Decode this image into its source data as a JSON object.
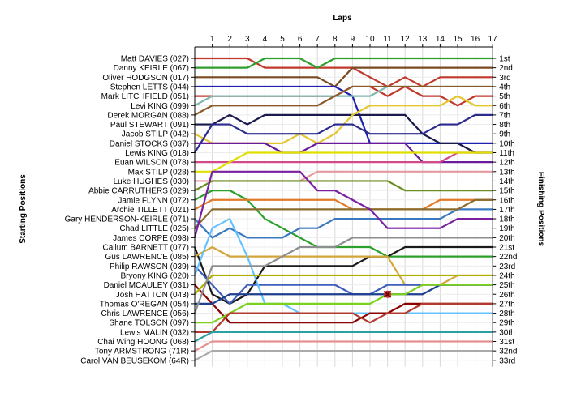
{
  "chart_data": {
    "type": "line",
    "title": "Laps",
    "ylabel_left": "Starting Positions",
    "ylabel_right": "Finishing Positions",
    "x": [
      1,
      2,
      3,
      4,
      5,
      6,
      7,
      8,
      9,
      10,
      11,
      12,
      13,
      14,
      15,
      16,
      17
    ],
    "finishing_labels": [
      "1st",
      "2nd",
      "3rd",
      "4th",
      "5th",
      "6th",
      "7th",
      "8th",
      "9th",
      "10th",
      "11th",
      "12th",
      "13th",
      "14th",
      "15th",
      "16th",
      "17th",
      "18th",
      "19th",
      "20th",
      "21st",
      "22nd",
      "23rd",
      "24th",
      "25th",
      "26th",
      "27th",
      "28th",
      "29th",
      "30th",
      "31st",
      "32nd",
      "33rd"
    ],
    "grid": true,
    "incident_marker": {
      "lap": 11,
      "position": 26
    },
    "series": [
      {
        "name": "Matt DAVIES (027)",
        "color": "#c0392b",
        "positions": [
          1,
          1,
          1,
          1,
          2,
          2,
          2,
          2,
          2,
          2,
          3,
          4,
          3,
          4,
          3,
          3,
          3,
          3
        ]
      },
      {
        "name": "Danny KEIRLE (067)",
        "color": "#2e9e2e",
        "positions": [
          2,
          2,
          2,
          2,
          1,
          1,
          1,
          2,
          1,
          1,
          1,
          1,
          1,
          1,
          1,
          1,
          1,
          1
        ]
      },
      {
        "name": "Oliver HODGSON (017)",
        "color": "#7a4a22",
        "positions": [
          3,
          3,
          3,
          3,
          3,
          3,
          3,
          3,
          4,
          2,
          2,
          2,
          2,
          2,
          2,
          2,
          2,
          2
        ]
      },
      {
        "name": "Stephen LETTS (044)",
        "color": "#1f1fb0",
        "positions": [
          4,
          4,
          4,
          4,
          4,
          4,
          4,
          4,
          4,
          5,
          10,
          10,
          10,
          10,
          10,
          10,
          10,
          10
        ]
      },
      {
        "name": "Mark LITCHFIELD (051)",
        "color": "#c0392b",
        "positions": [
          5,
          5,
          5,
          5,
          5,
          5,
          5,
          5,
          5,
          4,
          4,
          5,
          4,
          5,
          5,
          6,
          5,
          5
        ]
      },
      {
        "name": "Levi KING (099)",
        "color": "#7fb8b0",
        "positions": [
          6,
          5,
          5,
          5,
          5,
          5,
          5,
          5,
          5,
          5,
          5,
          4,
          4,
          4,
          4,
          4,
          4,
          4
        ]
      },
      {
        "name": "Derek MORGAN (088)",
        "color": "#8b5a2b",
        "positions": [
          7,
          6,
          6,
          6,
          6,
          6,
          6,
          6,
          5,
          4,
          4,
          4,
          4,
          4,
          4,
          4,
          4,
          4
        ]
      },
      {
        "name": "Paul STEWART (091)",
        "color": "#1a1a4d",
        "positions": [
          8,
          8,
          7,
          8,
          7,
          7,
          7,
          7,
          7,
          7,
          7,
          7,
          7,
          9,
          10,
          10,
          11,
          11
        ]
      },
      {
        "name": "Jacob STILP (042)",
        "color": "#e6c62e",
        "positions": [
          9,
          10,
          10,
          10,
          10,
          10,
          9,
          10,
          9,
          7,
          6,
          6,
          6,
          6,
          6,
          5,
          6,
          6
        ]
      },
      {
        "name": "Daniel STOCKS (037)",
        "color": "#6a1b9a",
        "positions": [
          10,
          10,
          10,
          10,
          10,
          11,
          11,
          10,
          10,
          10,
          10,
          10,
          10,
          12,
          12,
          12,
          12,
          12
        ]
      },
      {
        "name": "Lewis KING (018)",
        "color": "#2b2b8f",
        "positions": [
          11,
          8,
          8,
          9,
          9,
          9,
          9,
          9,
          8,
          8,
          9,
          9,
          9,
          9,
          8,
          8,
          7,
          7
        ]
      },
      {
        "name": "Euan WILSON (078)",
        "color": "#d34a8a",
        "positions": [
          12,
          12,
          12,
          12,
          12,
          12,
          12,
          12,
          12,
          12,
          12,
          12,
          12,
          12,
          12,
          11,
          11,
          11
        ]
      },
      {
        "name": "Max STILP (028)",
        "color": "#e0e000",
        "positions": [
          13,
          13,
          12,
          11,
          11,
          11,
          11,
          11,
          11,
          11,
          11,
          11,
          11,
          11,
          11,
          11,
          11,
          11
        ]
      },
      {
        "name": "Luke HUGHES (030)",
        "color": "#e69aa0",
        "positions": [
          14,
          14,
          14,
          14,
          14,
          14,
          14,
          13,
          13,
          13,
          13,
          13,
          13,
          13,
          13,
          13,
          13,
          13
        ]
      },
      {
        "name": "Abbie CARRUTHERS (029)",
        "color": "#6b8e23",
        "positions": [
          15,
          14,
          14,
          14,
          14,
          14,
          14,
          14,
          14,
          14,
          14,
          14,
          15,
          15,
          15,
          15,
          15,
          15
        ]
      },
      {
        "name": "Jamie FLYNN (072)",
        "color": "#2ca02c",
        "positions": [
          16,
          15,
          15,
          16,
          18,
          19,
          20,
          21,
          21,
          21,
          21,
          22,
          22,
          22,
          22,
          22,
          22,
          22
        ]
      },
      {
        "name": "Archie TILLETT (021)",
        "color": "#e07b29",
        "positions": [
          17,
          16,
          16,
          16,
          16,
          16,
          16,
          16,
          16,
          17,
          17,
          17,
          17,
          17,
          16,
          16,
          16,
          16
        ]
      },
      {
        "name": "Gary HENDERSON-KEIRLE (071)",
        "color": "#3a78c0",
        "positions": [
          18,
          20,
          19,
          20,
          20,
          20,
          19,
          19,
          18,
          18,
          18,
          18,
          18,
          18,
          18,
          17,
          17,
          17
        ]
      },
      {
        "name": "Chad LITTLE (025)",
        "color": "#8b6b2b",
        "positions": [
          19,
          17,
          17,
          17,
          17,
          17,
          17,
          17,
          17,
          17,
          17,
          17,
          17,
          17,
          17,
          17,
          16,
          16
        ]
      },
      {
        "name": "James CORPE (098)",
        "color": "#7b1fa2",
        "positions": [
          20,
          13,
          13,
          13,
          13,
          13,
          13,
          15,
          15,
          16,
          17,
          19,
          19,
          19,
          19,
          18,
          18,
          18
        ]
      },
      {
        "name": "Callum BARNETT (077)",
        "color": "#1a1a1a",
        "positions": [
          21,
          26,
          27,
          26,
          23,
          23,
          23,
          23,
          23,
          23,
          22,
          22,
          21,
          21,
          21,
          21,
          21,
          21
        ]
      },
      {
        "name": "Gus LAWRENCE (085)",
        "color": "#d4a63a",
        "positions": [
          22,
          21,
          22,
          22,
          22,
          22,
          22,
          22,
          22,
          22,
          22,
          22,
          25,
          25,
          25,
          24,
          24,
          24
        ]
      },
      {
        "name": "Philip RAWSON (039)",
        "color": "#3f5fbf",
        "positions": [
          23,
          25,
          27,
          25,
          25,
          25,
          25,
          25,
          25,
          26,
          26,
          25,
          25,
          25,
          25,
          25,
          25,
          25
        ]
      },
      {
        "name": "Bryony KING (020)",
        "color": "#66c2ff",
        "positions": [
          24,
          19,
          18,
          22,
          27,
          27,
          28,
          28,
          28,
          28,
          28,
          28,
          28,
          28,
          28,
          28,
          28,
          28
        ]
      },
      {
        "name": "Daniel MCAULEY (031)",
        "color": "#8b0000",
        "positions": [
          25,
          27,
          29,
          29,
          29,
          29,
          29,
          29,
          29,
          29,
          28,
          28,
          27,
          27,
          27,
          27,
          27,
          27
        ]
      },
      {
        "name": "Josh HATTON (043)",
        "color": "#b0b000",
        "positions": [
          26,
          24,
          24,
          24,
          24,
          24,
          24,
          24,
          24,
          24,
          24,
          24,
          24,
          24,
          24,
          24,
          24,
          24
        ]
      },
      {
        "name": "Thomas O'REGAN (054)",
        "color": "#1f3f8f",
        "positions": [
          27,
          27,
          26,
          26,
          26,
          26,
          26,
          26,
          26,
          26,
          26,
          26,
          26,
          26,
          25,
          25,
          25,
          25
        ]
      },
      {
        "name": "Chris LAWRENCE (056)",
        "color": "#8e8e8e",
        "positions": [
          28,
          23,
          23,
          23,
          23,
          22,
          21,
          21,
          21,
          20,
          20,
          20,
          20,
          20,
          20,
          20,
          20,
          20
        ]
      },
      {
        "name": "Shane TOLSON (097)",
        "color": "#7cd11f",
        "positions": [
          29,
          29,
          28,
          27,
          27,
          27,
          27,
          27,
          27,
          27,
          27,
          26,
          26,
          25,
          25,
          25,
          25,
          25
        ]
      },
      {
        "name": "Lewis MALIN (032)",
        "color": "#b23a2e",
        "positions": [
          30,
          30,
          28,
          28,
          28,
          28,
          28,
          28,
          28,
          28,
          29,
          28,
          28,
          27,
          27,
          27,
          27,
          27
        ]
      },
      {
        "name": "Chai Wing HOONG (068)",
        "color": "#2ca0a0",
        "positions": [
          31,
          30,
          30,
          30,
          30,
          30,
          30,
          30,
          30,
          30,
          30,
          30,
          30,
          30,
          30,
          30,
          30,
          30
        ]
      },
      {
        "name": "Tony ARMSTRONG (71R)",
        "color": "#e89090",
        "positions": [
          32,
          31,
          31,
          31,
          31,
          31,
          31,
          31,
          31,
          31,
          31,
          31,
          31,
          31,
          31,
          31,
          31,
          31
        ]
      },
      {
        "name": "Carol VAN BEUSEKOM (64R)",
        "color": "#aaaaaa",
        "positions": [
          33,
          32,
          32,
          32,
          32,
          32,
          32,
          32,
          32,
          32,
          32,
          32,
          32,
          32,
          32,
          32,
          32,
          32
        ]
      }
    ]
  }
}
